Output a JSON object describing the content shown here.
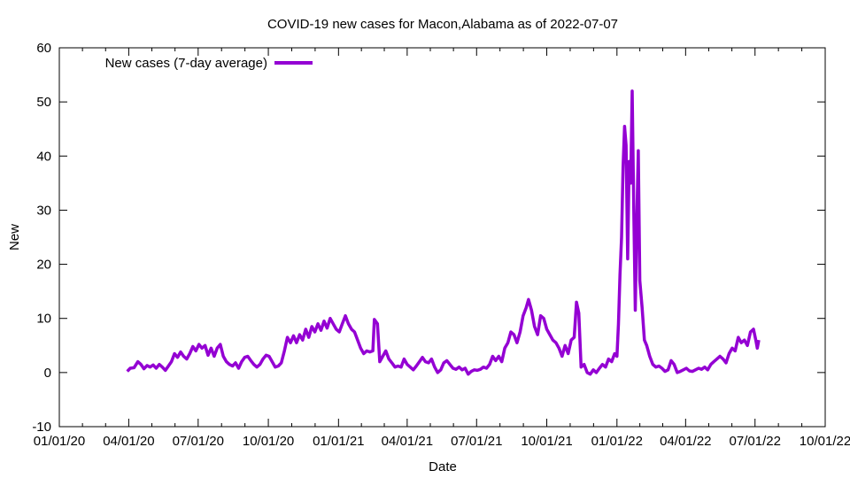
{
  "chart_data": {
    "type": "line",
    "title": "COVID-19 new cases for Macon,Alabama as of 2022-07-07",
    "xlabel": "Date",
    "ylabel": "New",
    "xlim": [
      "2020-01-01",
      "2022-10-01"
    ],
    "ylim": [
      -10,
      60
    ],
    "y_ticks": [
      -10,
      0,
      10,
      20,
      30,
      40,
      50,
      60
    ],
    "x_ticks": [
      {
        "date": "2020-01-01",
        "label": "01/01/20"
      },
      {
        "date": "2020-04-01",
        "label": "04/01/20"
      },
      {
        "date": "2020-07-01",
        "label": "07/01/20"
      },
      {
        "date": "2020-10-01",
        "label": "10/01/20"
      },
      {
        "date": "2021-01-01",
        "label": "01/01/21"
      },
      {
        "date": "2021-04-01",
        "label": "04/01/21"
      },
      {
        "date": "2021-07-01",
        "label": "07/01/21"
      },
      {
        "date": "2021-10-01",
        "label": "10/01/21"
      },
      {
        "date": "2022-01-01",
        "label": "01/01/22"
      },
      {
        "date": "2022-04-01",
        "label": "04/01/22"
      },
      {
        "date": "2022-07-01",
        "label": "07/01/22"
      },
      {
        "date": "2022-10-01",
        "label": "10/01/22"
      }
    ],
    "grid": false,
    "legend_position": "top-left",
    "series": [
      {
        "name": "New cases (7-day average)",
        "color": "#9400d3",
        "points": [
          [
            "2020-03-30",
            0.2
          ],
          [
            "2020-04-03",
            0.8
          ],
          [
            "2020-04-08",
            0.9
          ],
          [
            "2020-04-13",
            2.0
          ],
          [
            "2020-04-17",
            1.5
          ],
          [
            "2020-04-21",
            0.7
          ],
          [
            "2020-04-25",
            1.3
          ],
          [
            "2020-04-29",
            1.0
          ],
          [
            "2020-05-03",
            1.4
          ],
          [
            "2020-05-07",
            0.8
          ],
          [
            "2020-05-11",
            1.5
          ],
          [
            "2020-05-15",
            1.0
          ],
          [
            "2020-05-19",
            0.4
          ],
          [
            "2020-05-23",
            1.2
          ],
          [
            "2020-05-27",
            2.0
          ],
          [
            "2020-05-31",
            3.5
          ],
          [
            "2020-06-04",
            2.8
          ],
          [
            "2020-06-08",
            3.8
          ],
          [
            "2020-06-12",
            3.0
          ],
          [
            "2020-06-16",
            2.5
          ],
          [
            "2020-06-20",
            3.5
          ],
          [
            "2020-06-24",
            4.8
          ],
          [
            "2020-06-28",
            4.0
          ],
          [
            "2020-07-02",
            5.2
          ],
          [
            "2020-07-06",
            4.5
          ],
          [
            "2020-07-10",
            5.0
          ],
          [
            "2020-07-14",
            3.2
          ],
          [
            "2020-07-18",
            4.5
          ],
          [
            "2020-07-22",
            3.0
          ],
          [
            "2020-07-26",
            4.5
          ],
          [
            "2020-07-30",
            5.2
          ],
          [
            "2020-08-03",
            3.0
          ],
          [
            "2020-08-07",
            2.0
          ],
          [
            "2020-08-11",
            1.5
          ],
          [
            "2020-08-15",
            1.2
          ],
          [
            "2020-08-19",
            1.8
          ],
          [
            "2020-08-23",
            0.8
          ],
          [
            "2020-08-27",
            2.0
          ],
          [
            "2020-08-31",
            2.8
          ],
          [
            "2020-09-04",
            3.0
          ],
          [
            "2020-09-08",
            2.2
          ],
          [
            "2020-09-12",
            1.5
          ],
          [
            "2020-09-16",
            1.0
          ],
          [
            "2020-09-20",
            1.5
          ],
          [
            "2020-09-24",
            2.5
          ],
          [
            "2020-09-28",
            3.2
          ],
          [
            "2020-10-02",
            3.0
          ],
          [
            "2020-10-06",
            2.0
          ],
          [
            "2020-10-10",
            1.0
          ],
          [
            "2020-10-14",
            1.2
          ],
          [
            "2020-10-18",
            1.8
          ],
          [
            "2020-10-22",
            4.0
          ],
          [
            "2020-10-26",
            6.5
          ],
          [
            "2020-10-30",
            5.5
          ],
          [
            "2020-11-03",
            6.8
          ],
          [
            "2020-11-07",
            5.5
          ],
          [
            "2020-11-11",
            7.0
          ],
          [
            "2020-11-15",
            6.0
          ],
          [
            "2020-11-19",
            8.0
          ],
          [
            "2020-11-23",
            6.5
          ],
          [
            "2020-11-27",
            8.5
          ],
          [
            "2020-12-01",
            7.5
          ],
          [
            "2020-12-05",
            9.0
          ],
          [
            "2020-12-09",
            7.8
          ],
          [
            "2020-12-13",
            9.5
          ],
          [
            "2020-12-17",
            8.2
          ],
          [
            "2020-12-21",
            10.0
          ],
          [
            "2020-12-25",
            9.0
          ],
          [
            "2020-12-29",
            8.0
          ],
          [
            "2021-01-02",
            7.5
          ],
          [
            "2021-01-06",
            9.0
          ],
          [
            "2021-01-10",
            10.5
          ],
          [
            "2021-01-14",
            9.0
          ],
          [
            "2021-01-18",
            8.0
          ],
          [
            "2021-01-22",
            7.5
          ],
          [
            "2021-01-26",
            6.0
          ],
          [
            "2021-01-30",
            4.5
          ],
          [
            "2021-02-03",
            3.5
          ],
          [
            "2021-02-07",
            4.0
          ],
          [
            "2021-02-11",
            3.8
          ],
          [
            "2021-02-15",
            4.0
          ],
          [
            "2021-02-17",
            9.8
          ],
          [
            "2021-02-21",
            9.0
          ],
          [
            "2021-02-24",
            2.0
          ],
          [
            "2021-02-28",
            3.0
          ],
          [
            "2021-03-04",
            4.0
          ],
          [
            "2021-03-08",
            2.5
          ],
          [
            "2021-03-12",
            1.8
          ],
          [
            "2021-03-16",
            1.0
          ],
          [
            "2021-03-20",
            1.2
          ],
          [
            "2021-03-24",
            1.0
          ],
          [
            "2021-03-28",
            2.5
          ],
          [
            "2021-04-01",
            1.5
          ],
          [
            "2021-04-05",
            1.0
          ],
          [
            "2021-04-09",
            0.5
          ],
          [
            "2021-04-13",
            1.2
          ],
          [
            "2021-04-17",
            2.0
          ],
          [
            "2021-04-21",
            2.8
          ],
          [
            "2021-04-25",
            2.0
          ],
          [
            "2021-04-29",
            1.8
          ],
          [
            "2021-05-03",
            2.5
          ],
          [
            "2021-05-07",
            1.0
          ],
          [
            "2021-05-11",
            0.0
          ],
          [
            "2021-05-15",
            0.5
          ],
          [
            "2021-05-19",
            1.8
          ],
          [
            "2021-05-23",
            2.2
          ],
          [
            "2021-05-27",
            1.5
          ],
          [
            "2021-05-31",
            0.8
          ],
          [
            "2021-06-04",
            0.6
          ],
          [
            "2021-06-08",
            1.0
          ],
          [
            "2021-06-12",
            0.5
          ],
          [
            "2021-06-16",
            0.8
          ],
          [
            "2021-06-20",
            -0.3
          ],
          [
            "2021-06-24",
            0.2
          ],
          [
            "2021-06-28",
            0.5
          ],
          [
            "2021-07-02",
            0.4
          ],
          [
            "2021-07-06",
            0.6
          ],
          [
            "2021-07-10",
            1.0
          ],
          [
            "2021-07-14",
            0.8
          ],
          [
            "2021-07-18",
            1.5
          ],
          [
            "2021-07-22",
            3.0
          ],
          [
            "2021-07-26",
            2.2
          ],
          [
            "2021-07-30",
            3.0
          ],
          [
            "2021-08-03",
            2.0
          ],
          [
            "2021-08-07",
            4.5
          ],
          [
            "2021-08-11",
            5.5
          ],
          [
            "2021-08-15",
            7.5
          ],
          [
            "2021-08-19",
            7.0
          ],
          [
            "2021-08-23",
            5.5
          ],
          [
            "2021-08-27",
            7.5
          ],
          [
            "2021-08-31",
            10.5
          ],
          [
            "2021-09-04",
            12.0
          ],
          [
            "2021-09-07",
            13.5
          ],
          [
            "2021-09-11",
            11.5
          ],
          [
            "2021-09-15",
            8.5
          ],
          [
            "2021-09-19",
            7.0
          ],
          [
            "2021-09-23",
            10.5
          ],
          [
            "2021-09-27",
            10.0
          ],
          [
            "2021-10-01",
            8.0
          ],
          [
            "2021-10-05",
            7.0
          ],
          [
            "2021-10-09",
            6.0
          ],
          [
            "2021-10-13",
            5.5
          ],
          [
            "2021-10-17",
            4.5
          ],
          [
            "2021-10-21",
            3.0
          ],
          [
            "2021-10-25",
            5.0
          ],
          [
            "2021-10-29",
            3.5
          ],
          [
            "2021-11-02",
            6.0
          ],
          [
            "2021-11-06",
            6.5
          ],
          [
            "2021-11-09",
            13.0
          ],
          [
            "2021-11-12",
            11.0
          ],
          [
            "2021-11-15",
            1.0
          ],
          [
            "2021-11-19",
            1.5
          ],
          [
            "2021-11-23",
            0.0
          ],
          [
            "2021-11-27",
            -0.3
          ],
          [
            "2021-12-01",
            0.5
          ],
          [
            "2021-12-05",
            0.0
          ],
          [
            "2021-12-09",
            0.8
          ],
          [
            "2021-12-13",
            1.5
          ],
          [
            "2021-12-17",
            1.0
          ],
          [
            "2021-12-21",
            2.5
          ],
          [
            "2021-12-25",
            2.0
          ],
          [
            "2021-12-29",
            3.5
          ],
          [
            "2022-01-01",
            3.0
          ],
          [
            "2022-01-03",
            9.0
          ],
          [
            "2022-01-05",
            18.0
          ],
          [
            "2022-01-07",
            25.0
          ],
          [
            "2022-01-09",
            38.0
          ],
          [
            "2022-01-11",
            45.5
          ],
          [
            "2022-01-13",
            42.0
          ],
          [
            "2022-01-15",
            21.0
          ],
          [
            "2022-01-17",
            39.0
          ],
          [
            "2022-01-19",
            35.0
          ],
          [
            "2022-01-21",
            52.0
          ],
          [
            "2022-01-23",
            30.0
          ],
          [
            "2022-01-25",
            11.5
          ],
          [
            "2022-01-27",
            28.0
          ],
          [
            "2022-01-29",
            41.0
          ],
          [
            "2022-01-31",
            17.0
          ],
          [
            "2022-02-03",
            12.0
          ],
          [
            "2022-02-06",
            6.0
          ],
          [
            "2022-02-09",
            5.0
          ],
          [
            "2022-02-13",
            3.0
          ],
          [
            "2022-02-17",
            1.5
          ],
          [
            "2022-02-21",
            1.0
          ],
          [
            "2022-02-25",
            1.2
          ],
          [
            "2022-03-01",
            0.8
          ],
          [
            "2022-03-05",
            0.2
          ],
          [
            "2022-03-09",
            0.5
          ],
          [
            "2022-03-13",
            2.2
          ],
          [
            "2022-03-17",
            1.5
          ],
          [
            "2022-03-21",
            0.0
          ],
          [
            "2022-03-25",
            0.2
          ],
          [
            "2022-03-29",
            0.5
          ],
          [
            "2022-04-02",
            0.8
          ],
          [
            "2022-04-06",
            0.3
          ],
          [
            "2022-04-10",
            0.2
          ],
          [
            "2022-04-14",
            0.5
          ],
          [
            "2022-04-18",
            0.8
          ],
          [
            "2022-04-22",
            0.6
          ],
          [
            "2022-04-26",
            1.0
          ],
          [
            "2022-04-30",
            0.5
          ],
          [
            "2022-05-04",
            1.5
          ],
          [
            "2022-05-08",
            2.0
          ],
          [
            "2022-05-12",
            2.5
          ],
          [
            "2022-05-16",
            3.0
          ],
          [
            "2022-05-20",
            2.5
          ],
          [
            "2022-05-24",
            1.8
          ],
          [
            "2022-05-28",
            3.5
          ],
          [
            "2022-06-01",
            4.5
          ],
          [
            "2022-06-05",
            4.0
          ],
          [
            "2022-06-09",
            6.5
          ],
          [
            "2022-06-13",
            5.5
          ],
          [
            "2022-06-17",
            6.0
          ],
          [
            "2022-06-21",
            5.0
          ],
          [
            "2022-06-25",
            7.5
          ],
          [
            "2022-06-29",
            8.0
          ],
          [
            "2022-07-02",
            6.0
          ],
          [
            "2022-07-04",
            4.5
          ],
          [
            "2022-07-06",
            6.0
          ]
        ]
      }
    ]
  }
}
